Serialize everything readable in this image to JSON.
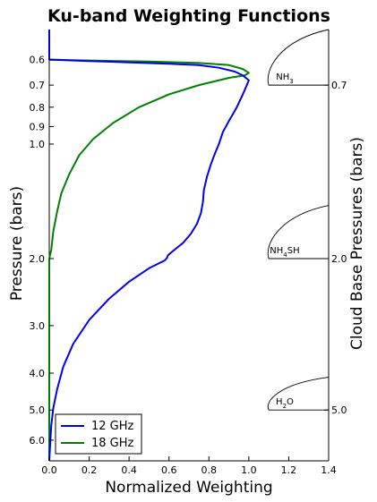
{
  "chart_data": {
    "type": "line",
    "title": "Ku-band Weighting Functions",
    "xlabel": "Normalized Weighting",
    "ylabel": "Pressure (bars)",
    "ylabel_right": "Cloud Base Pressures (bars)",
    "xlim": [
      0,
      1.4
    ],
    "ylim": [
      6.8,
      0.5
    ],
    "yscale": "log",
    "y_inverted": true,
    "x_ticks": [
      "0.0",
      "0.2",
      "0.4",
      "0.6",
      "0.8",
      "1.0",
      "1.2",
      "1.4"
    ],
    "y_ticks": [
      "0.6",
      "0.7",
      "0.8",
      "0.9",
      "1.0",
      "2.0",
      "3.0",
      "4.0",
      "5.0",
      "6.0"
    ],
    "right_ticks": [
      "0.7",
      "2.0",
      "5.0"
    ],
    "grid": false,
    "legend": {
      "position": "bottom-left",
      "entries": [
        "12 GHz",
        "18 GHz"
      ]
    },
    "series": [
      {
        "name": "12 GHz",
        "color": "#0000ee",
        "points": [
          [
            0.0,
            0.5
          ],
          [
            0.0,
            0.6
          ],
          [
            0.2,
            0.605
          ],
          [
            0.4,
            0.61
          ],
          [
            0.6,
            0.615
          ],
          [
            0.75,
            0.62
          ],
          [
            0.85,
            0.63
          ],
          [
            0.93,
            0.645
          ],
          [
            0.97,
            0.66
          ],
          [
            1.0,
            0.68
          ],
          [
            0.99,
            0.7
          ],
          [
            0.97,
            0.74
          ],
          [
            0.94,
            0.8
          ],
          [
            0.9,
            0.87
          ],
          [
            0.87,
            0.93
          ],
          [
            0.85,
            1.0
          ],
          [
            0.83,
            1.06
          ],
          [
            0.81,
            1.13
          ],
          [
            0.79,
            1.22
          ],
          [
            0.775,
            1.32
          ],
          [
            0.77,
            1.42
          ],
          [
            0.76,
            1.52
          ],
          [
            0.74,
            1.62
          ],
          [
            0.71,
            1.72
          ],
          [
            0.67,
            1.82
          ],
          [
            0.62,
            1.91
          ],
          [
            0.595,
            1.96
          ],
          [
            0.59,
            1.99
          ],
          [
            0.58,
            2.02
          ],
          [
            0.5,
            2.12
          ],
          [
            0.4,
            2.3
          ],
          [
            0.3,
            2.55
          ],
          [
            0.2,
            2.9
          ],
          [
            0.12,
            3.35
          ],
          [
            0.07,
            3.85
          ],
          [
            0.04,
            4.4
          ],
          [
            0.02,
            4.95
          ],
          [
            0.01,
            5.5
          ],
          [
            0.005,
            6.1
          ],
          [
            0.0,
            6.8
          ]
        ]
      },
      {
        "name": "18 GHz",
        "color": "#008000",
        "points": [
          [
            0.0,
            0.5
          ],
          [
            0.0,
            0.6
          ],
          [
            0.2,
            0.603
          ],
          [
            0.5,
            0.607
          ],
          [
            0.75,
            0.612
          ],
          [
            0.9,
            0.62
          ],
          [
            0.97,
            0.635
          ],
          [
            1.0,
            0.65
          ],
          [
            0.98,
            0.66
          ],
          [
            0.9,
            0.67
          ],
          [
            0.75,
            0.7
          ],
          [
            0.6,
            0.74
          ],
          [
            0.45,
            0.8
          ],
          [
            0.32,
            0.88
          ],
          [
            0.22,
            0.97
          ],
          [
            0.15,
            1.07
          ],
          [
            0.1,
            1.2
          ],
          [
            0.06,
            1.35
          ],
          [
            0.04,
            1.5
          ],
          [
            0.02,
            1.7
          ],
          [
            0.01,
            1.9
          ],
          [
            0.0,
            2.0
          ],
          [
            0.0,
            6.8
          ]
        ]
      }
    ],
    "cloud_layers": [
      {
        "label_main": "NH",
        "label_sub": "3",
        "label_tail": "",
        "base_pressure": 0.7,
        "top_pressure": 0.5
      },
      {
        "label_main": "NH",
        "label_sub": "4",
        "label_tail": "SH",
        "base_pressure": 2.0,
        "top_pressure": 1.45
      },
      {
        "label_main": "H",
        "label_sub": "2",
        "label_tail": "O",
        "base_pressure": 5.0,
        "top_pressure": 4.1
      }
    ]
  }
}
